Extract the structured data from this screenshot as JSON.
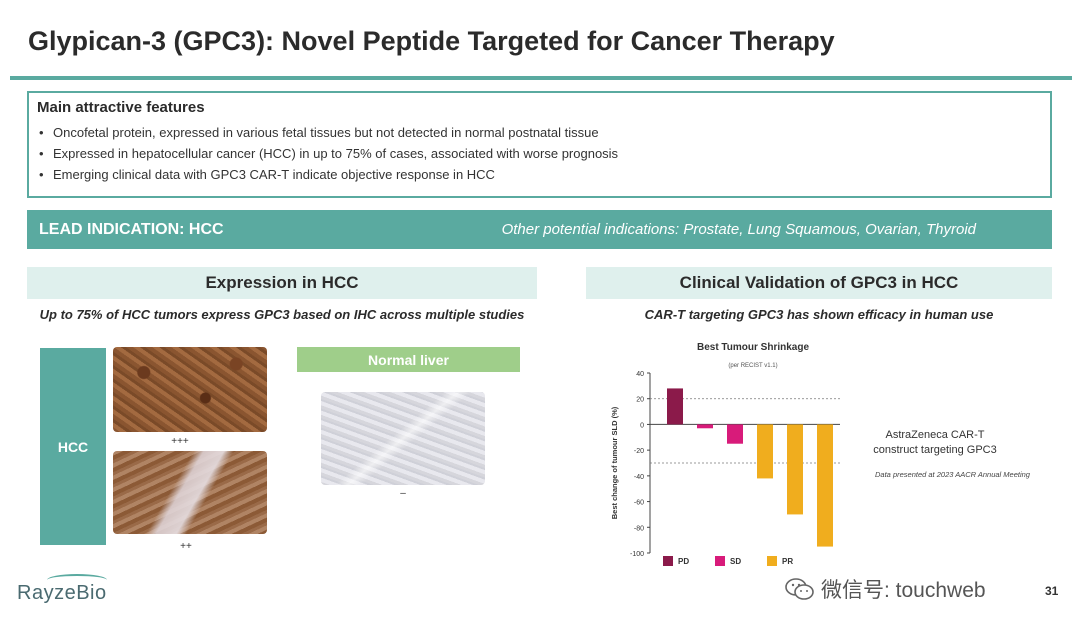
{
  "title": "Glypican-3 (GPC3): Novel Peptide Targeted for Cancer Therapy",
  "features": {
    "heading": "Main attractive features",
    "items": [
      "Oncofetal protein, expressed in various fetal tissues but not detected in normal postnatal tissue",
      "Expressed in hepatocellular cancer (HCC) in up to 75% of cases, associated with worse prognosis",
      "Emerging clinical data with GPC3 CAR-T indicate objective response in HCC"
    ]
  },
  "lead": {
    "title": "LEAD INDICATION: HCC",
    "other": "Other potential indications: Prostate, Lung Squamous, Ovarian, Thyroid"
  },
  "expression": {
    "header": "Expression in HCC",
    "subtitle": "Up to 75% of HCC tumors express GPC3 based on IHC across multiple studies",
    "hcc_label": "HCC",
    "grade1": "+++",
    "grade2": "++",
    "normal_label": "Normal liver",
    "normal_grade": "–"
  },
  "clinical": {
    "header": "Clinical Validation of GPC3 in HCC",
    "subtitle": "CAR-T targeting GPC3 has shown efficacy in human use",
    "construct_label": "AstraZeneca CAR-T construct targeting GPC3",
    "note": "Data presented at 2023 AACR Annual Meeting"
  },
  "chart_data": {
    "type": "bar",
    "title": "Best Tumour Shrinkage",
    "subtitle": "(per RECIST v1.1)",
    "ylabel": "Best change of tumour SLD (%)",
    "ylim": [
      -100,
      40
    ],
    "yticks": [
      40,
      20,
      0,
      -20,
      -40,
      -60,
      -80,
      -100
    ],
    "reference_lines": [
      20,
      -30
    ],
    "bars": [
      {
        "value": 28,
        "response": "PD"
      },
      {
        "value": -3,
        "response": "SD"
      },
      {
        "value": -15,
        "response": "SD"
      },
      {
        "value": -42,
        "response": "PR"
      },
      {
        "value": -70,
        "response": "PR"
      },
      {
        "value": -95,
        "response": "PR"
      }
    ],
    "legend": [
      {
        "label": "PD",
        "color": "#8b1a4a"
      },
      {
        "label": "SD",
        "color": "#d81b7a"
      },
      {
        "label": "PR",
        "color": "#f0ad1e"
      }
    ]
  },
  "footer": {
    "logo": "RayzeBio",
    "watermark": "微信号: touchweb",
    "page": "31"
  }
}
